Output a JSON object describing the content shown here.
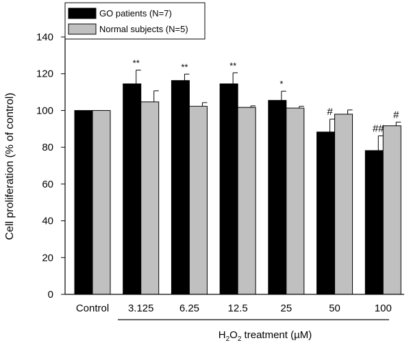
{
  "chart_data": {
    "type": "bar",
    "categories": [
      "Control",
      "3.125",
      "6.25",
      "12.5",
      "25",
      "50",
      "100"
    ],
    "series": [
      {
        "name": "GO patients (N=7)",
        "color": "#000000",
        "values": [
          100,
          114.5,
          116.3,
          114.5,
          105.5,
          88.3,
          78.2
        ],
        "errors": [
          0,
          7.5,
          3.5,
          6,
          5,
          7,
          8
        ],
        "annotations": [
          "",
          "**",
          "**",
          "**",
          "*",
          "#",
          "##"
        ]
      },
      {
        "name": "Normal subjects (N=5)",
        "color": "#c0c0c0",
        "values": [
          100,
          104.7,
          102.3,
          101.7,
          101.3,
          98,
          91.7
        ],
        "errors": [
          0,
          6,
          2,
          0.8,
          1,
          2.3,
          2
        ],
        "annotations": [
          "",
          "",
          "",
          "",
          "",
          "",
          "#"
        ]
      }
    ],
    "ylabel": "Cell proliferation (% of control)",
    "ylim": [
      0,
      140
    ],
    "yticks": [
      0,
      20,
      40,
      60,
      80,
      100,
      120,
      140
    ],
    "xlabel": {
      "prefix": "H",
      "sub1": "2",
      "mid": "O",
      "sub2": "2",
      "suffix": " treatment (",
      "mu": "µ",
      "unit": "M)"
    },
    "legend_position": "top-left",
    "grid": false
  }
}
